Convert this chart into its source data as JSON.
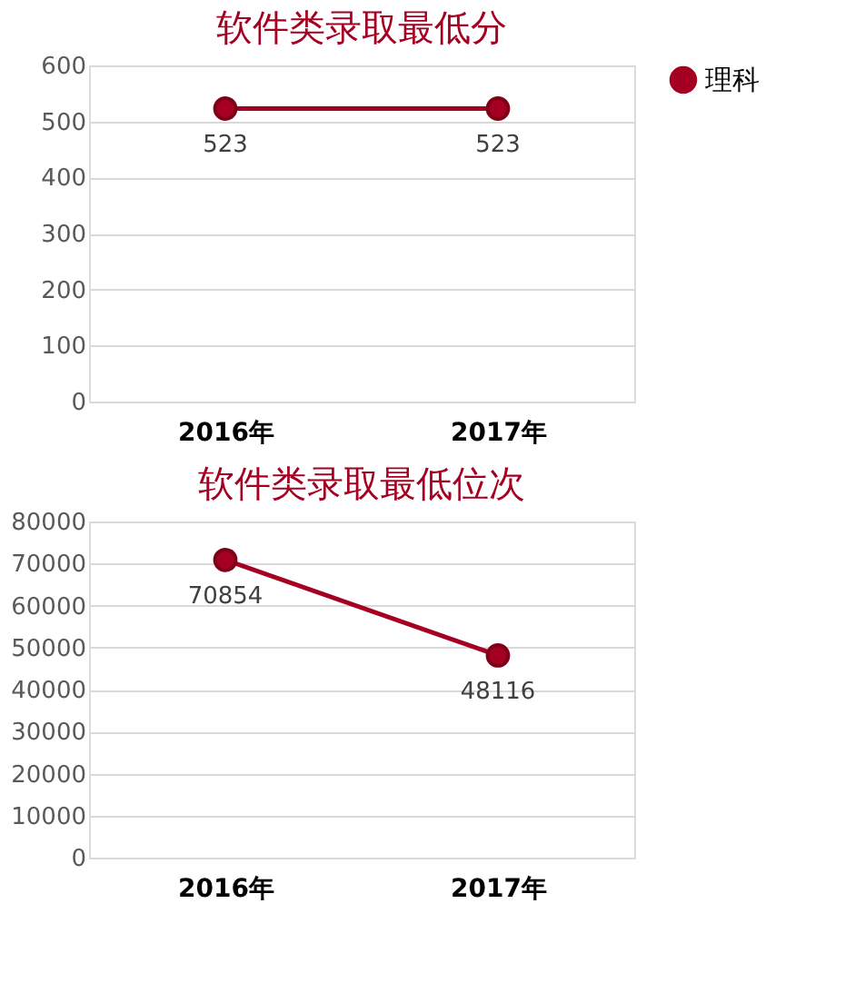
{
  "chart_data": [
    {
      "type": "line",
      "title": "软件类录取最低分",
      "categories": [
        "2016年",
        "2017年"
      ],
      "series": [
        {
          "name": "理科",
          "color": "#a50021",
          "values": [
            523,
            523
          ]
        }
      ],
      "ylim": [
        0,
        600
      ],
      "yticks": [
        0,
        100,
        200,
        300,
        400,
        500,
        600
      ],
      "grid": "y",
      "legend": "right",
      "marker": "circle",
      "data_labels": true
    },
    {
      "type": "line",
      "title": "软件类录取最低位次",
      "categories": [
        "2016年",
        "2017年"
      ],
      "series": [
        {
          "name": "理科",
          "color": "#a50021",
          "values": [
            70854,
            48116
          ]
        }
      ],
      "ylim": [
        0,
        80000
      ],
      "yticks": [
        0,
        10000,
        20000,
        30000,
        40000,
        50000,
        60000,
        70000,
        80000
      ],
      "grid": "y",
      "legend": "right",
      "marker": "circle",
      "data_labels": true
    }
  ]
}
